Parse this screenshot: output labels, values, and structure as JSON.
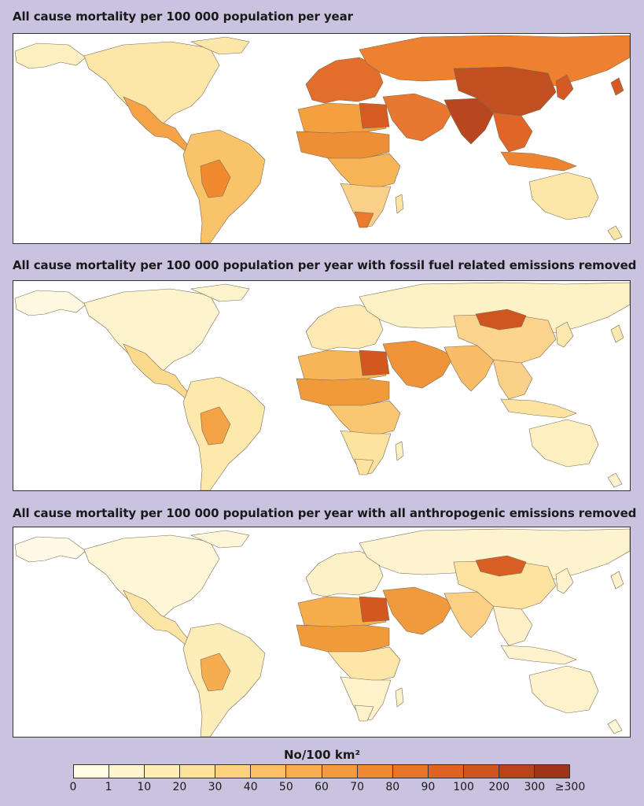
{
  "panels": [
    {
      "title": "All cause mortality per 100 000 population per year",
      "shading": {
        "north_america": "#fde7a8",
        "alaska": "#fdf0c0",
        "central_america": "#f6a347",
        "south_america": "#f9c36a",
        "south_america_hot": "#ef8a2e",
        "europe": "#e36d2a",
        "russia": "#ee812f",
        "north_africa": "#f4a03f",
        "egypt": "#d65b21",
        "sahel": "#ef8f35",
        "central_africa": "#f7b556",
        "southern_africa": "#fad089",
        "south_africa": "#ec7a2d",
        "middle_east": "#e77731",
        "india": "#b8461e",
        "china": "#c24f1f",
        "se_asia": "#e06627",
        "indonesia": "#ef8430",
        "japan": "#d45a24",
        "australia": "#fde7a8",
        "madagascar": "#fde4a0"
      }
    },
    {
      "title": "All cause mortality per 100 000 population per year with fossil fuel related emissions removed",
      "shading": {
        "north_america": "#fdf3cc",
        "alaska": "#fef8de",
        "central_america": "#fbd98d",
        "south_america": "#fde9ac",
        "south_america_hot": "#f3a346",
        "europe": "#fde9b1",
        "russia": "#fdf1c6",
        "north_africa": "#f7b656",
        "egypt": "#d2581f",
        "sahel": "#f19a3a",
        "central_africa": "#f9c771",
        "southern_africa": "#fde3a0",
        "south_africa": "#fde3a0",
        "middle_east": "#f0943a",
        "india": "#f8bd66",
        "china": "#fbd38d",
        "se_asia": "#fbd18a",
        "indonesia": "#fde2a0",
        "japan": "#fde8ae",
        "australia": "#fdefc0",
        "madagascar": "#fdf0c2",
        "mongolia": "#d0561f"
      }
    },
    {
      "title": "All cause mortality per 100 000 population per year with all anthropogenic emissions removed",
      "shading": {
        "north_america": "#fef6d6",
        "alaska": "#fefae6",
        "central_america": "#fde5a6",
        "south_america": "#fdeeb9",
        "south_america_hot": "#f6ad50",
        "europe": "#fdf1c7",
        "russia": "#fdf4cf",
        "north_africa": "#f6ad4c",
        "egypt": "#d2581f",
        "sahel": "#f19a3a",
        "central_africa": "#fde6a8",
        "southern_africa": "#fdf2c9",
        "south_africa": "#fdf2c9",
        "middle_east": "#f19a3d",
        "india": "#fbcf84",
        "china": "#fde2a0",
        "se_asia": "#fef1c8",
        "indonesia": "#fef3cc",
        "japan": "#fef3cc",
        "australia": "#fef3cc",
        "madagascar": "#fef3cc",
        "mongolia": "#d95e23"
      }
    }
  ],
  "legend": {
    "title": "No/100 km²",
    "ticks": [
      "0",
      "1",
      "10",
      "20",
      "30",
      "40",
      "50",
      "60",
      "70",
      "80",
      "90",
      "100",
      "200",
      "300",
      "≥300"
    ],
    "colors": [
      "#fffde2",
      "#fff6cf",
      "#fdedb3",
      "#fde29a",
      "#fcd27f",
      "#fbc065",
      "#f8ad4e",
      "#f59a3e",
      "#f08731",
      "#e87428",
      "#de6322",
      "#d0541e",
      "#b9441a",
      "#9f3418"
    ]
  }
}
